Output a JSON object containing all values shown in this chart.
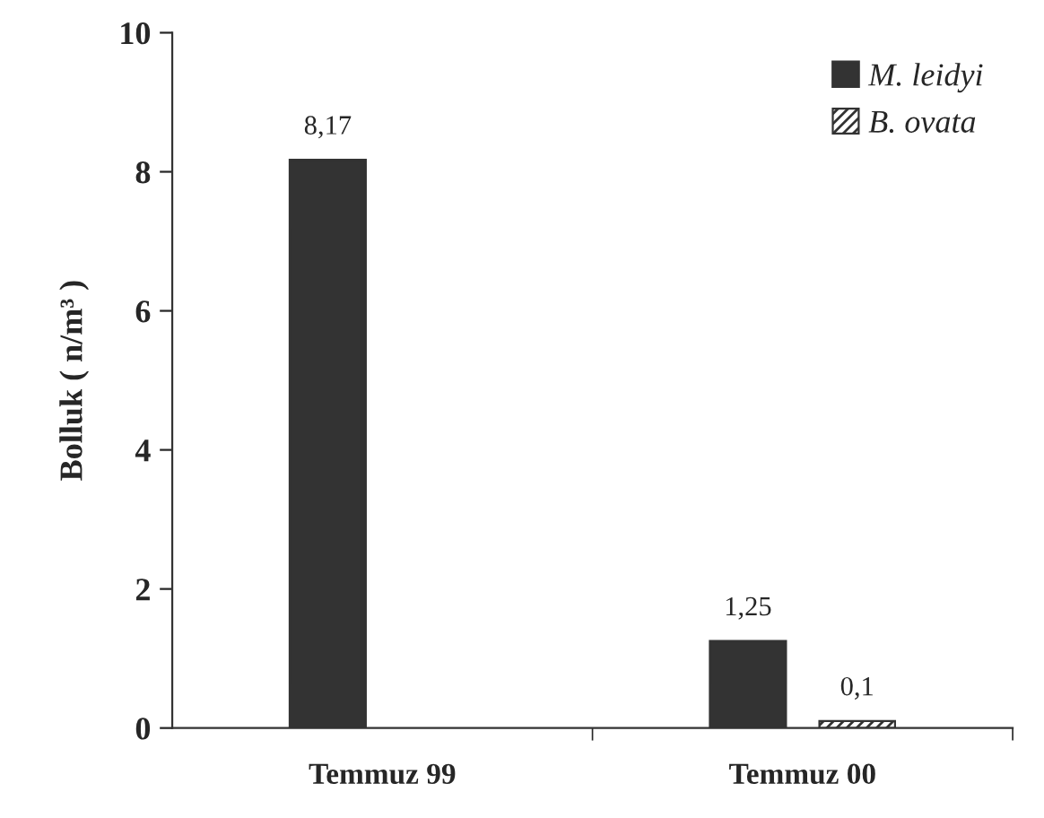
{
  "chart_data": {
    "type": "bar",
    "ylabel": "Bolluk ( n/m³ )",
    "categories": [
      "Temmuz 99",
      "Temmuz 00"
    ],
    "series": [
      {
        "name": "M. leidyi",
        "color": "#333333",
        "values": [
          8.17,
          1.25
        ],
        "value_labels": [
          "8,17",
          "1,25"
        ]
      },
      {
        "name": "B. ovata",
        "color": "#333333",
        "values": [
          null,
          0.1
        ],
        "value_labels": [
          null,
          "0,1"
        ]
      }
    ],
    "ylim": [
      0,
      10
    ],
    "yticks": [
      0,
      2,
      4,
      6,
      8,
      10
    ],
    "grid": false,
    "legend": "top right"
  }
}
